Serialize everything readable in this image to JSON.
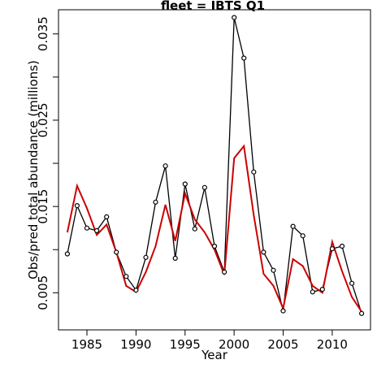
{
  "chart_data": {
    "type": "line",
    "title": "fleet =  IBTS Q1",
    "xlabel": "Year",
    "ylabel": "Obs/pred total abundance (millions)",
    "xlim": [
      1982.1,
      2013.9
    ],
    "ylim": [
      0.0007,
      0.0378
    ],
    "xticks": [
      1985,
      1990,
      1995,
      2000,
      2005,
      2010
    ],
    "yticks": [
      0.005,
      0.01,
      0.015,
      0.02,
      0.025,
      0.03,
      0.035
    ],
    "ytick_labels": [
      "0.005",
      "",
      "0.015",
      "",
      "0.025",
      "",
      "0.035"
    ],
    "grid": false,
    "x": [
      1983,
      1984,
      1985,
      1986,
      1987,
      1988,
      1989,
      1990,
      1991,
      1992,
      1993,
      1994,
      1995,
      1996,
      1997,
      1998,
      1999,
      2000,
      2001,
      2002,
      2003,
      2004,
      2005,
      2006,
      2007,
      2008,
      2009,
      2010,
      2011,
      2012,
      2013
    ],
    "series": [
      {
        "role": "observed",
        "color": "#000000",
        "marker": "open-circle",
        "values": [
          0.0095,
          0.0151,
          0.0125,
          0.0122,
          0.0138,
          0.0097,
          0.0069,
          0.0053,
          0.0091,
          0.0155,
          0.0197,
          0.009,
          0.0176,
          0.0124,
          0.0172,
          0.0104,
          0.0074,
          0.0369,
          0.0322,
          0.019,
          0.0097,
          0.0076,
          0.0029,
          0.0127,
          0.0116,
          0.0051,
          0.0054,
          0.0101,
          0.0104,
          0.0061,
          0.0026
        ]
      },
      {
        "role": "predicted",
        "color": "#cc0000",
        "marker": "none",
        "values": [
          0.012,
          0.0174,
          0.0148,
          0.0117,
          0.0129,
          0.0097,
          0.0058,
          0.0051,
          0.0074,
          0.0104,
          0.0152,
          0.011,
          0.0165,
          0.0135,
          0.012,
          0.01,
          0.0071,
          0.0206,
          0.022,
          0.014,
          0.0072,
          0.0058,
          0.0032,
          0.0089,
          0.0081,
          0.0058,
          0.005,
          0.0109,
          0.0075,
          0.0045,
          0.0028
        ]
      }
    ]
  }
}
